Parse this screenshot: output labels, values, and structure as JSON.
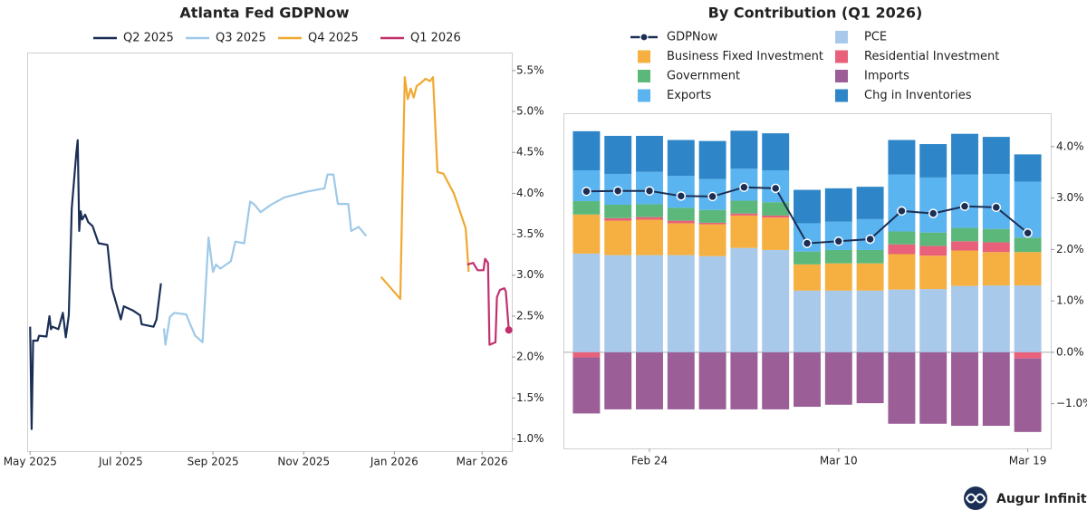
{
  "chart_data": [
    {
      "type": "line",
      "title": "Atlanta Fed GDPNow",
      "xlim": [
        "2025-04-29",
        "2026-03-21"
      ],
      "xticks": [
        {
          "value": "2025-05-01",
          "label": "May 2025"
        },
        {
          "value": "2025-07-01",
          "label": "Jul 2025"
        },
        {
          "value": "2025-09-01",
          "label": "Sep 2025"
        },
        {
          "value": "2025-11-01",
          "label": "Nov 2025"
        },
        {
          "value": "2026-01-01",
          "label": "Jan 2026"
        },
        {
          "value": "2026-03-01",
          "label": "Mar 2026"
        }
      ],
      "ylim": [
        0.85,
        5.72
      ],
      "yticks": [
        {
          "value": 1.0,
          "label": "1.0%"
        },
        {
          "value": 1.5,
          "label": "1.5%"
        },
        {
          "value": 2.0,
          "label": "2.0%"
        },
        {
          "value": 2.5,
          "label": "2.5%"
        },
        {
          "value": 3.0,
          "label": "3.0%"
        },
        {
          "value": 3.5,
          "label": "3.5%"
        },
        {
          "value": 4.0,
          "label": "4.0%"
        },
        {
          "value": 4.5,
          "label": "4.5%"
        },
        {
          "value": 5.0,
          "label": "5.0%"
        },
        {
          "value": 5.5,
          "label": "5.5%"
        }
      ],
      "series": [
        {
          "name": "Q2 2025",
          "color": "#1b2f56",
          "x": [
            "2025-05-01",
            "2025-05-02",
            "2025-05-03",
            "2025-05-06",
            "2025-05-07",
            "2025-05-12",
            "2025-05-14",
            "2025-05-15",
            "2025-05-16",
            "2025-05-20",
            "2025-05-23",
            "2025-05-25",
            "2025-05-27",
            "2025-05-29",
            "2025-06-01",
            "2025-06-02",
            "2025-06-03",
            "2025-06-04",
            "2025-06-05",
            "2025-06-07",
            "2025-06-09",
            "2025-06-12",
            "2025-06-16",
            "2025-06-22",
            "2025-06-25",
            "2025-07-01",
            "2025-07-03",
            "2025-07-09",
            "2025-07-14",
            "2025-07-15",
            "2025-07-23",
            "2025-07-25",
            "2025-07-28"
          ],
          "values": [
            2.37,
            1.12,
            2.2,
            2.2,
            2.26,
            2.25,
            2.5,
            2.34,
            2.37,
            2.34,
            2.54,
            2.24,
            2.51,
            3.82,
            4.48,
            4.65,
            3.54,
            3.78,
            3.68,
            3.74,
            3.65,
            3.6,
            3.39,
            3.37,
            2.84,
            2.46,
            2.62,
            2.57,
            2.51,
            2.4,
            2.37,
            2.46,
            2.9
          ]
        },
        {
          "name": "Q3 2025",
          "color": "#9ec9e8",
          "x": [
            "2025-07-30",
            "2025-07-31",
            "2025-08-03",
            "2025-08-06",
            "2025-08-14",
            "2025-08-16",
            "2025-08-20",
            "2025-08-25",
            "2025-08-29",
            "2025-09-01",
            "2025-09-03",
            "2025-09-06",
            "2025-09-13",
            "2025-09-16",
            "2025-09-22",
            "2025-09-26",
            "2025-09-29",
            "2025-10-03",
            "2025-10-10",
            "2025-10-19",
            "2025-11-03",
            "2025-11-15",
            "2025-11-17",
            "2025-11-21",
            "2025-11-24",
            "2025-12-01",
            "2025-12-03",
            "2025-12-08",
            "2025-12-13"
          ],
          "values": [
            2.35,
            2.15,
            2.49,
            2.54,
            2.52,
            2.43,
            2.26,
            2.18,
            3.46,
            3.04,
            3.13,
            3.08,
            3.17,
            3.41,
            3.39,
            3.9,
            3.86,
            3.77,
            3.86,
            3.95,
            4.02,
            4.06,
            4.23,
            4.23,
            3.87,
            3.87,
            3.54,
            3.59,
            3.48
          ]
        },
        {
          "name": "Q4 2025",
          "color": "#f0a830",
          "x": [
            "2025-12-23",
            "2026-01-05",
            "2026-01-08",
            "2026-01-10",
            "2026-01-12",
            "2026-01-14",
            "2026-01-16",
            "2026-01-19",
            "2026-01-22",
            "2026-01-25",
            "2026-01-27",
            "2026-01-30",
            "2026-02-03",
            "2026-02-10",
            "2026-02-16",
            "2026-02-18",
            "2026-02-20"
          ],
          "values": [
            2.98,
            2.71,
            5.42,
            5.15,
            5.28,
            5.17,
            5.31,
            5.35,
            5.4,
            5.37,
            5.42,
            4.26,
            4.24,
            4.0,
            3.68,
            3.57,
            3.04
          ]
        },
        {
          "name": "Q1 2026",
          "color": "#c2306e",
          "x": [
            "2026-02-19",
            "2026-02-23",
            "2026-02-26",
            "2026-03-02",
            "2026-03-03",
            "2026-03-05",
            "2026-03-06",
            "2026-03-10",
            "2026-03-11",
            "2026-03-13",
            "2026-03-16",
            "2026-03-17",
            "2026-03-19"
          ],
          "values": [
            3.13,
            3.15,
            3.06,
            3.06,
            3.2,
            3.15,
            2.15,
            2.18,
            2.73,
            2.82,
            2.84,
            2.8,
            2.33
          ]
        }
      ]
    },
    {
      "type": "bar",
      "stacked": true,
      "title": "By Contribution (Q1 2026)",
      "categories": [
        null,
        null,
        "Feb 24",
        null,
        null,
        null,
        null,
        null,
        "Mar 10",
        null,
        null,
        null,
        null,
        null,
        "Mar 19"
      ],
      "ylim": [
        -1.87,
        4.65
      ],
      "yticks": [
        {
          "value": -1.0,
          "label": "−1.0%"
        },
        {
          "value": 0.0,
          "label": "0.0%"
        },
        {
          "value": 1.0,
          "label": "1.0%"
        },
        {
          "value": 2.0,
          "label": "2.0%"
        },
        {
          "value": 3.0,
          "label": "3.0%"
        },
        {
          "value": 4.0,
          "label": "4.0%"
        }
      ],
      "series": [
        {
          "name": "GDPNow",
          "type": "line",
          "color": "#1b2f56",
          "values": [
            3.13,
            3.14,
            3.14,
            3.04,
            3.03,
            3.21,
            3.19,
            2.12,
            2.16,
            2.2,
            2.75,
            2.7,
            2.84,
            2.82,
            2.32
          ]
        },
        {
          "name": "PCE",
          "color": "#a9c9ea",
          "values": [
            1.92,
            1.89,
            1.89,
            1.89,
            1.87,
            2.03,
            1.99,
            1.2,
            1.2,
            1.2,
            1.22,
            1.23,
            1.29,
            1.3,
            1.3
          ]
        },
        {
          "name": "Business Fixed Investment",
          "color": "#f5b041",
          "values": [
            0.76,
            0.67,
            0.69,
            0.62,
            0.62,
            0.63,
            0.63,
            0.51,
            0.53,
            0.53,
            0.69,
            0.65,
            0.69,
            0.65,
            0.65
          ]
        },
        {
          "name": "Residential Investment",
          "color": "#e8607a",
          "values": [
            -0.1,
            0.05,
            0.05,
            0.05,
            0.03,
            0.04,
            0.04,
            0,
            0,
            0,
            0.19,
            0.19,
            0.18,
            0.19,
            -0.12
          ]
        },
        {
          "name": "Government",
          "color": "#5cb87a",
          "values": [
            0.26,
            0.26,
            0.25,
            0.25,
            0.25,
            0.25,
            0.26,
            0.25,
            0.26,
            0.26,
            0.25,
            0.26,
            0.26,
            0.26,
            0.28
          ]
        },
        {
          "name": "Imports",
          "color": "#9b5e96",
          "values": [
            -1.09,
            -1.11,
            -1.11,
            -1.11,
            -1.11,
            -1.11,
            -1.11,
            -1.06,
            -1.02,
            -0.99,
            -1.39,
            -1.39,
            -1.43,
            -1.43,
            -1.43
          ]
        },
        {
          "name": "Exports",
          "color": "#5ab4f0",
          "values": [
            0.6,
            0.6,
            0.63,
            0.62,
            0.6,
            0.62,
            0.62,
            0.55,
            0.55,
            0.6,
            1.11,
            1.07,
            1.04,
            1.07,
            1.09
          ]
        },
        {
          "name": "Chg in Inventories",
          "color": "#2e86c8",
          "values": [
            0.76,
            0.74,
            0.7,
            0.7,
            0.74,
            0.74,
            0.72,
            0.65,
            0.65,
            0.63,
            0.67,
            0.65,
            0.79,
            0.72,
            0.53
          ]
        }
      ]
    }
  ],
  "brand": "Augur Infinity"
}
